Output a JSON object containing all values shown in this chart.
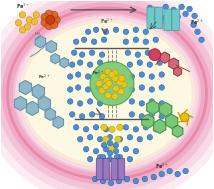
{
  "fig_width": 2.14,
  "fig_height": 1.89,
  "dpi": 100,
  "bg_color": "#ffffff",
  "cell_bg": "#fdf8e1",
  "fe3_color": "#f0c030",
  "fe2_color": "#4a8fd0",
  "fe_yellow_color": "#e8c020",
  "np_green": "#78c870",
  "np_yellow": "#e8c820",
  "probe1_color": "#90b8c8",
  "probe1_edge": "#5888a0",
  "probe2_color": "#d06878",
  "probe2_edge": "#903040",
  "probe3_color": "#78c878",
  "probe3_edge": "#3a8040",
  "transporter_cyan": "#70c8c8",
  "transporter_purple": "#9878c0",
  "receptor_orange": "#d86828",
  "mem_color": "#f0a0c0",
  "arrow_dark": "#444444"
}
